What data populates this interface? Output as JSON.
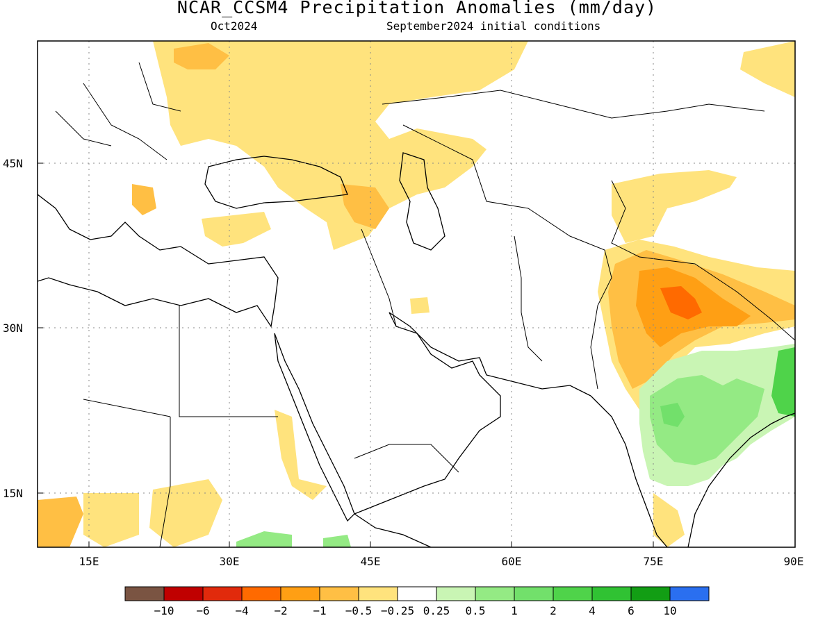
{
  "title": "NCAR_CCSM4 Precipitation Anomalies (mm/day)",
  "valid_month": "Oct2024",
  "init_label": "September2024 initial conditions",
  "lat_ticks": [
    "45N",
    "30N",
    "15N"
  ],
  "lon_ticks": [
    "15E",
    "30E",
    "45E",
    "60E",
    "75E",
    "90E"
  ],
  "colorbar": {
    "colors": [
      "#7a5442",
      "#c00000",
      "#e12a0c",
      "#ff6a00",
      "#ff9f14",
      "#ffbf44",
      "#ffe37d",
      "#ffffff",
      "#c9f5b4",
      "#94ea84",
      "#72e06b",
      "#4fd34a",
      "#30c233",
      "#129e14",
      "#2a6ff0"
    ],
    "labels": [
      "−10",
      "−6",
      "−4",
      "−2",
      "−1",
      "−0.5",
      "−0.25",
      "0.25",
      "0.5",
      "1",
      "2",
      "4",
      "6",
      "10"
    ]
  }
}
